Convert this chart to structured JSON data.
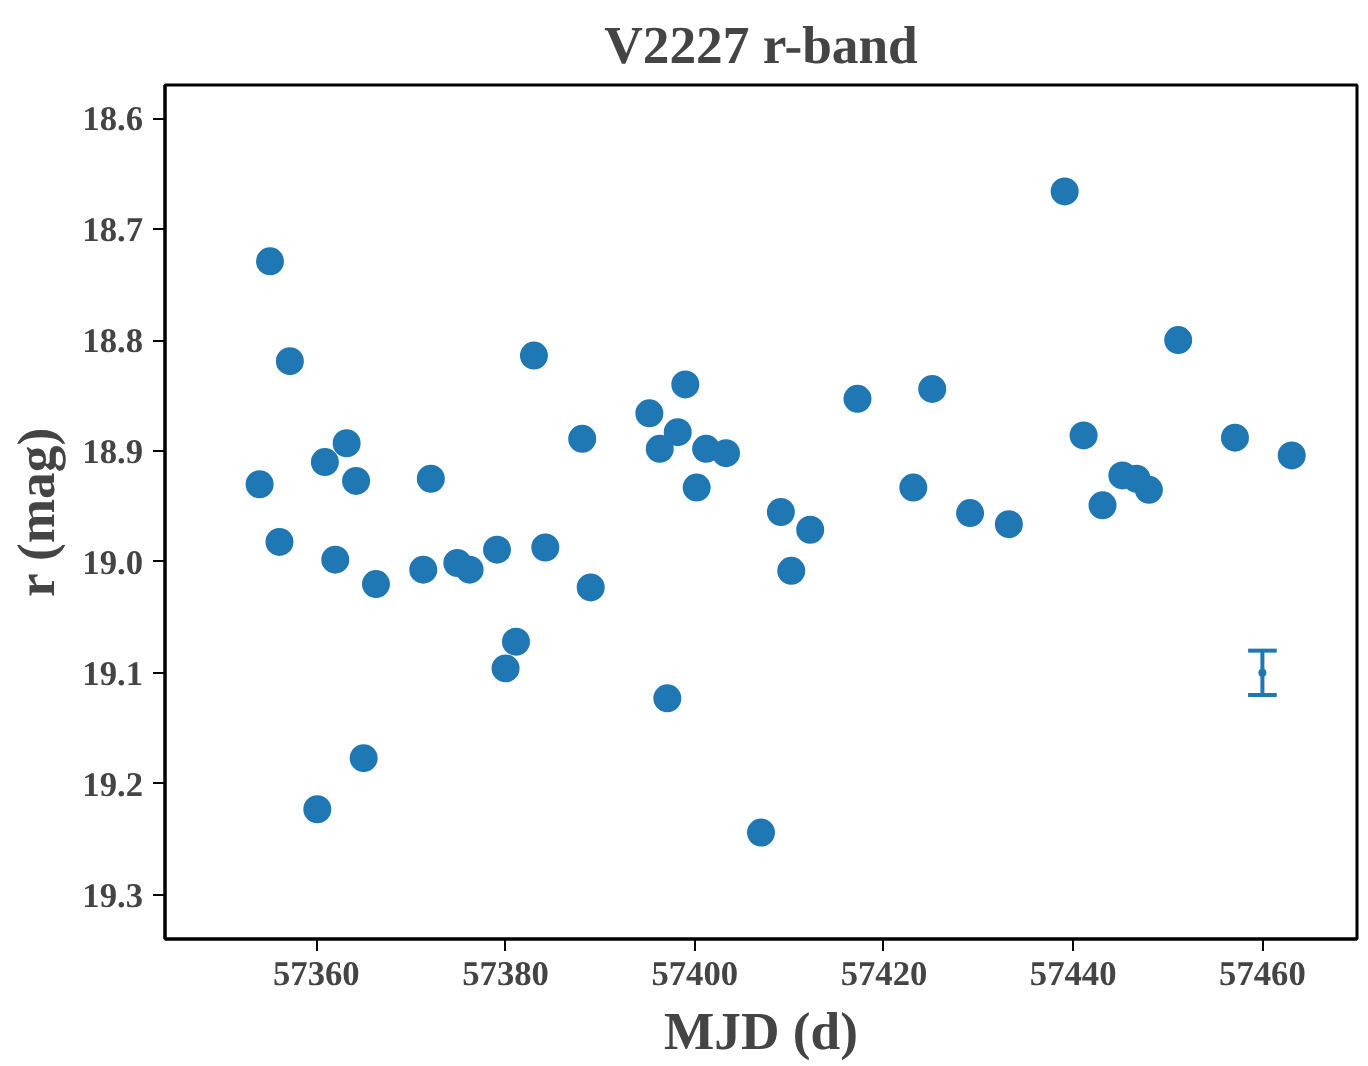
{
  "chart_data": {
    "type": "scatter",
    "title": "V2227 r-band",
    "xlabel": "MJD (d)",
    "ylabel": "r (mag)",
    "xlim": [
      57344,
      57470
    ],
    "ylim": [
      19.34,
      18.57
    ],
    "xticks": [
      57360,
      57380,
      57400,
      57420,
      57440,
      57460
    ],
    "yticks": [
      18.6,
      18.7,
      18.8,
      18.9,
      {
        "value": 19.0,
        "label": "19.0"
      },
      19.1,
      19.2,
      19.3
    ],
    "grid": false,
    "marker": "circle",
    "series": [
      {
        "color": "#1f77b4",
        "x": [
          57354.0,
          57355.1,
          57356.1,
          57357.2,
          57360.1,
          57360.9,
          57362.0,
          57363.2,
          57364.2,
          57365.0,
          57366.3,
          57371.3,
          57372.1,
          57374.9,
          57376.2,
          57379.1,
          57380.0,
          57381.1,
          57383.0,
          57384.2,
          57388.1,
          57389.0,
          57395.2,
          57396.3,
          57397.1,
          57398.2,
          57399.0,
          57400.2,
          57401.2,
          57403.3,
          57407.0,
          57409.1,
          57410.2,
          57412.2,
          57417.2,
          57423.1,
          57425.1,
          57429.1,
          57433.2,
          57439.1,
          57441.1,
          57443.1,
          57445.2,
          57446.7,
          57448.0,
          57451.1,
          57457.1,
          57463.1
        ],
        "values": [
          18.93,
          18.729,
          18.982,
          18.819,
          19.223,
          18.91,
          18.998,
          18.893,
          18.927,
          19.177,
          19.02,
          19.007,
          18.925,
          19.001,
          19.007,
          18.989,
          19.096,
          19.072,
          18.814,
          18.987,
          18.889,
          19.023,
          18.866,
          18.898,
          19.123,
          18.883,
          18.84,
          18.933,
          18.898,
          18.902,
          19.244,
          18.955,
          19.008,
          18.971,
          18.853,
          18.933,
          18.844,
          18.956,
          18.966,
          18.666,
          18.886,
          18.949,
          18.922,
          18.925,
          18.935,
          18.8,
          18.888,
          18.904
        ]
      },
      {
        "color": "#1f77b4",
        "marker": "none",
        "x": [
          57460
        ],
        "values": [
          19.1
        ],
        "errors": [
          0.02
        ]
      }
    ]
  }
}
